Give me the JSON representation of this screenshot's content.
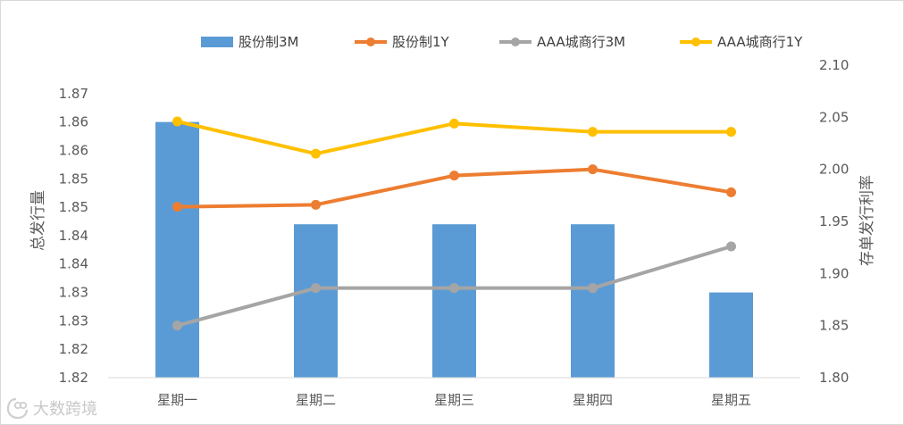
{
  "chart_data": {
    "type": "bar+line",
    "categories": [
      "星期一",
      "星期二",
      "星期三",
      "星期四",
      "星期五"
    ],
    "left_axis": {
      "label": "总发行量",
      "min": 1.815,
      "max": 1.87,
      "ticks": [
        {
          "v": 1.815,
          "label": "1.82"
        },
        {
          "v": 1.82,
          "label": "1.82"
        },
        {
          "v": 1.825,
          "label": "1.83"
        },
        {
          "v": 1.83,
          "label": "1.83"
        },
        {
          "v": 1.835,
          "label": "1.84"
        },
        {
          "v": 1.84,
          "label": "1.84"
        },
        {
          "v": 1.845,
          "label": "1.85"
        },
        {
          "v": 1.85,
          "label": "1.85"
        },
        {
          "v": 1.855,
          "label": "1.86"
        },
        {
          "v": 1.86,
          "label": "1.86"
        },
        {
          "v": 1.865,
          "label": "1.87"
        }
      ]
    },
    "right_axis": {
      "label": "存单发行利率",
      "min": 1.8,
      "max": 2.1,
      "ticks": [
        {
          "v": 1.8,
          "label": "1.80"
        },
        {
          "v": 1.85,
          "label": "1.85"
        },
        {
          "v": 1.9,
          "label": "1.90"
        },
        {
          "v": 1.95,
          "label": "1.95"
        },
        {
          "v": 2.0,
          "label": "2.00"
        },
        {
          "v": 2.05,
          "label": "2.05"
        },
        {
          "v": 2.1,
          "label": "2.10"
        }
      ]
    },
    "series": [
      {
        "name": "股份制3M",
        "type": "bar",
        "axis": "left",
        "color": "#5b9bd5",
        "values": [
          1.86,
          1.842,
          1.842,
          1.842,
          1.83
        ]
      },
      {
        "name": "股份制1Y",
        "type": "line",
        "axis": "right",
        "color": "#ed7d31",
        "values": [
          1.964,
          1.966,
          1.994,
          2.0,
          1.978
        ]
      },
      {
        "name": "AAA城商行3M",
        "type": "line",
        "axis": "right",
        "color": "#a5a5a5",
        "values": [
          1.85,
          1.886,
          1.886,
          1.886,
          1.926
        ]
      },
      {
        "name": "AAA城商行1Y",
        "type": "line",
        "axis": "right",
        "color": "#ffc000",
        "values": [
          2.046,
          2.015,
          2.044,
          2.036,
          2.036
        ]
      }
    ],
    "legend_position": "top",
    "grid": false
  },
  "watermark": {
    "text": "大数跨境",
    "icon": "dashu-logo-icon"
  }
}
